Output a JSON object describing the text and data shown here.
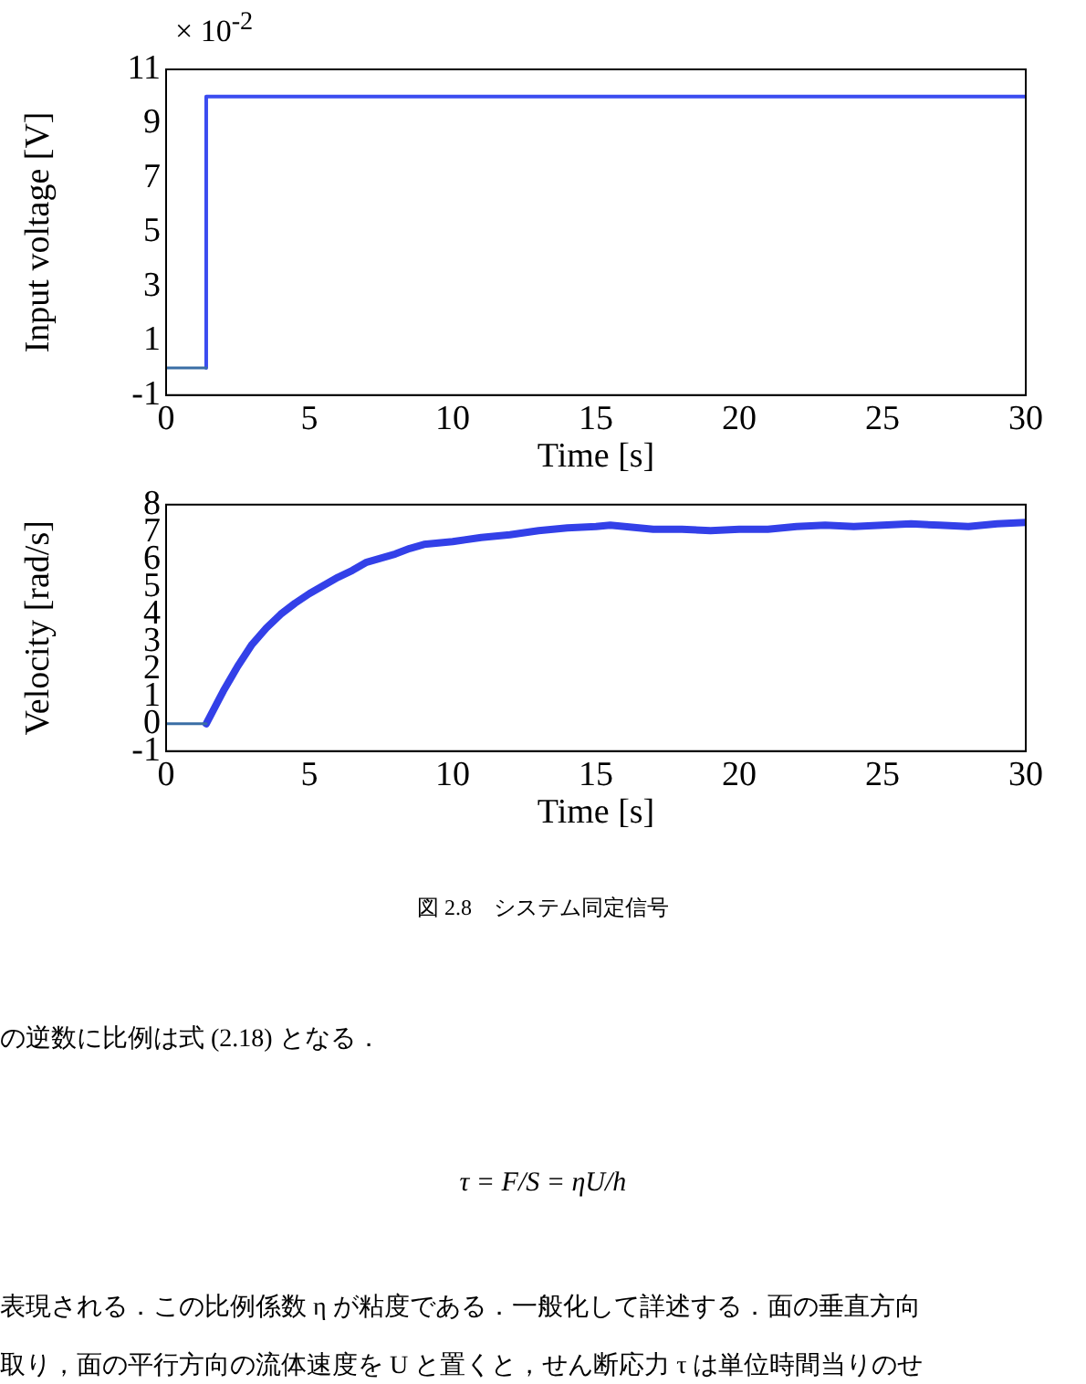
{
  "chart_data": [
    {
      "type": "line",
      "xlabel": "Time [s]",
      "ylabel": "Input voltage [V]",
      "annotations": [
        "× 10$^{-2}$"
      ],
      "xlim": [
        0,
        30
      ],
      "xticks": [
        0,
        5,
        10,
        15,
        20,
        25,
        30
      ],
      "ylim": [
        -1,
        11
      ],
      "yticks": [
        -1,
        1,
        3,
        5,
        7,
        9,
        11
      ],
      "grid": false,
      "legend": false,
      "marker": "none",
      "series": [
        {
          "color": "#3a6ea5",
          "x": [
            0,
            1.4
          ],
          "values": [
            0,
            0
          ]
        },
        {
          "color": "#3b4cf0",
          "x": [
            1.4,
            1.4,
            30
          ],
          "values": [
            0,
            10,
            10
          ]
        }
      ]
    },
    {
      "type": "line",
      "xlabel": "Time [s]",
      "ylabel": "Velocity [rad/s]",
      "annotations": [
        "図 2.8　システム同定信号",
        "の逆数に比例は式 (2.18) となる．",
        "τ = F/S = ηU/h",
        "表現される．この比例係数 η が粘度である．一般化して詳述する．面の垂直方向",
        "取り，面の平行方向の流体速度を U と置くと，せん断応力 τ は単位時間当りのせ"
      ],
      "xlim": [
        0,
        30
      ],
      "xticks": [
        0,
        5,
        10,
        15,
        20,
        25,
        30
      ],
      "ylim": [
        -1,
        8
      ],
      "yticks": [
        -1,
        0,
        1,
        2,
        3,
        4,
        5,
        6,
        7,
        8
      ],
      "grid": false,
      "legend": false,
      "marker": "none",
      "series": [
        {
          "color": "#3a6ea5",
          "x": [
            0,
            1.4
          ],
          "values": [
            0,
            0
          ]
        },
        {
          "color": "#3340e8",
          "x": [
            1.4,
            2,
            2.5,
            3,
            3.5,
            4,
            4.5,
            5,
            5.5,
            6,
            6.5,
            7,
            7.5,
            8,
            8.5,
            9,
            9.5,
            10,
            11,
            12,
            13,
            14,
            15,
            15.5,
            16,
            17,
            18,
            19,
            20,
            21,
            22,
            23,
            24,
            25,
            26,
            27,
            28,
            29,
            30
          ],
          "values": [
            0,
            1.2,
            2.1,
            2.9,
            3.5,
            4.0,
            4.4,
            4.75,
            5.05,
            5.35,
            5.6,
            5.9,
            6.05,
            6.2,
            6.4,
            6.55,
            6.6,
            6.65,
            6.8,
            6.9,
            7.05,
            7.15,
            7.2,
            7.25,
            7.2,
            7.1,
            7.1,
            7.05,
            7.1,
            7.1,
            7.2,
            7.25,
            7.2,
            7.25,
            7.3,
            7.25,
            7.2,
            7.3,
            7.35
          ]
        }
      ]
    }
  ]
}
